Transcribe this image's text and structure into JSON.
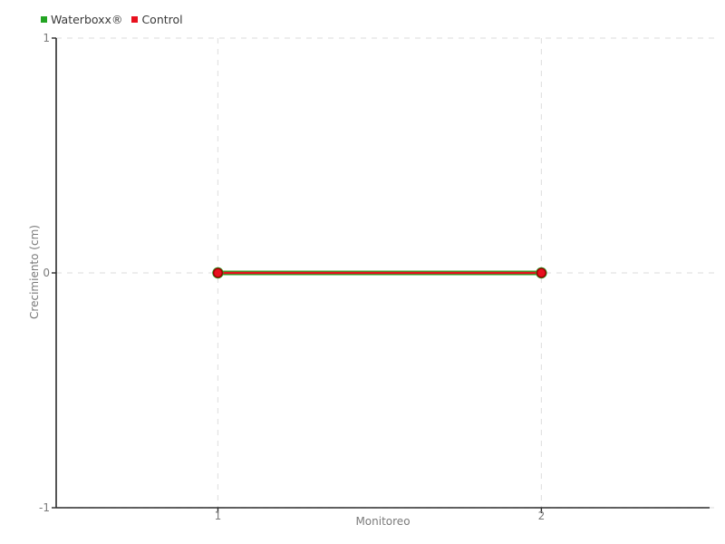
{
  "chart_data": {
    "type": "line",
    "x": [
      1,
      2
    ],
    "series": [
      {
        "name": "Waterboxx®",
        "color": "#23A423",
        "values": [
          0,
          0
        ],
        "line_width": 5,
        "marker_radius": 6.2
      },
      {
        "name": "Control",
        "color": "#E8101E",
        "values": [
          0,
          0
        ],
        "line_width": 2.6,
        "marker_radius": 4.8,
        "marker_stroke": "#9B0000"
      }
    ],
    "title": "",
    "xlabel": "Monitoreo",
    "ylabel": "Crecimiento (cm)",
    "xlim": [
      0.5,
      2.52
    ],
    "ylim": [
      -1,
      1
    ],
    "xticks": [
      1,
      2
    ],
    "xtick_labels": [
      "1",
      "2"
    ],
    "yticks": [
      1,
      0,
      -1
    ],
    "ytick_labels": [
      "1",
      "0",
      "-1"
    ],
    "grid": "dashed",
    "legend_position": "top-left",
    "axis_color": "#2b2b2b",
    "grid_color": "#e2e2e2",
    "tick_label_color": "#7a7a7a",
    "axis_title_color": "#7a7a7a",
    "legend_text_color": "#3a3a3a",
    "background": "#ffffff"
  }
}
